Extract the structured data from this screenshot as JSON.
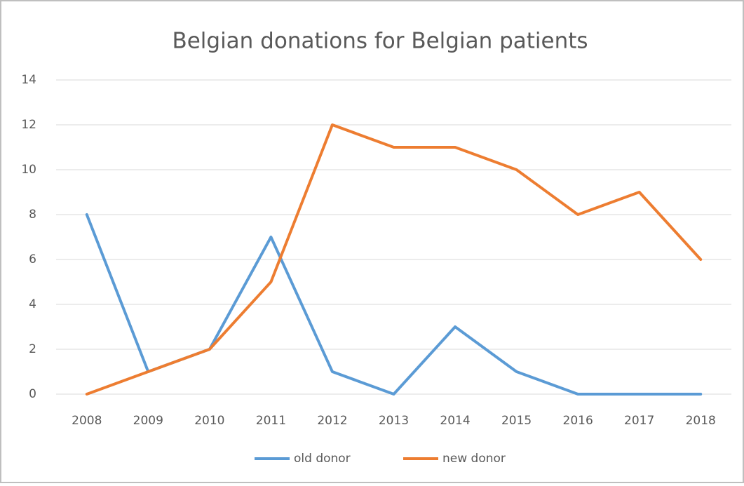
{
  "chart_data": {
    "type": "line",
    "title": "Belgian donations for Belgian patients",
    "categories": [
      "2008",
      "2009",
      "2010",
      "2011",
      "2012",
      "2013",
      "2014",
      "2015",
      "2016",
      "2017",
      "2018"
    ],
    "series": [
      {
        "name": "old donor",
        "color": "#5b9bd5",
        "values": [
          8,
          1,
          2,
          7,
          1,
          0,
          3,
          1,
          0,
          0,
          0
        ]
      },
      {
        "name": "new donor",
        "color": "#ed7d31",
        "values": [
          0,
          1,
          2,
          5,
          12,
          11,
          11,
          10,
          8,
          9,
          6
        ]
      }
    ],
    "ylim": [
      0,
      14
    ],
    "yticks": [
      0,
      2,
      4,
      6,
      8,
      10,
      12,
      14
    ],
    "grid": true,
    "legend": "bottom"
  }
}
